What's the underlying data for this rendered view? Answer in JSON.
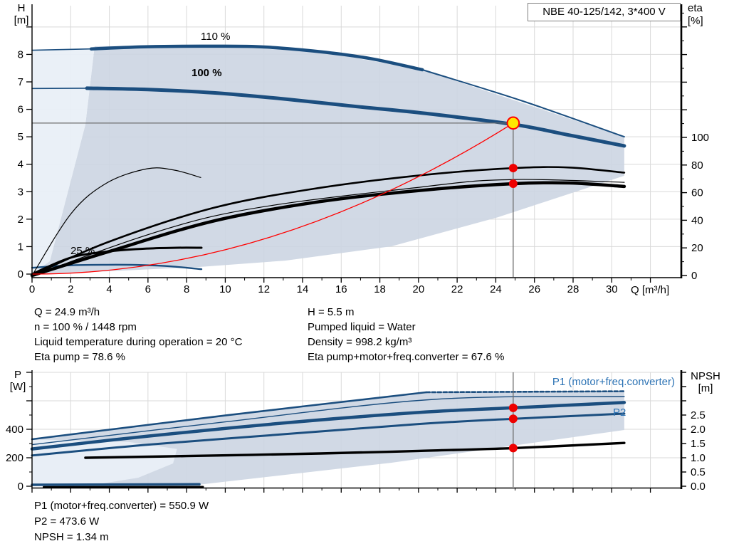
{
  "title_box": {
    "text": "NBE 40-125/142, 3*400 V"
  },
  "colors": {
    "curve_blue": "#1b4e7f",
    "fill_dark": "#ccd5e2",
    "fill_light": "#e9eff7",
    "grid": "#d9d9d9",
    "axis": "#000000",
    "red": "#ff0000",
    "dot_red": "#ee0000",
    "marker_yellow": "#ffe600",
    "crosshair": "#6e6e6e",
    "blue_text": "#2e74b5"
  },
  "top_chart": {
    "y_left_label_1": "H",
    "y_left_label_2": "[m]",
    "y_right_label_1": "eta",
    "y_right_label_2": "[%]",
    "x_axis_label": "Q [m³/h]",
    "label_110": "110 %",
    "label_100": "100 %",
    "label_25": "25 %"
  },
  "bottom_chart": {
    "y_left_label_1": "P",
    "y_left_label_2": "[W]",
    "y_right_label_1": "NPSH",
    "y_right_label_2": "[m]",
    "label_p1": "P1 (motor+freq.converter)",
    "label_p2": "P2"
  },
  "info_top": {
    "left": [
      "Q = 24.9 m³/h",
      "n = 100 % / 1448 rpm",
      "Liquid temperature during operation = 20 °C",
      "Eta pump = 78.6 %"
    ],
    "right": [
      "H = 5.5 m",
      "Pumped liquid = Water",
      "Density = 998.2 kg/m³",
      "Eta pump+motor+freq.converter = 67.6 %"
    ]
  },
  "info_bottom": [
    "P1 (motor+freq.converter) = 550.9 W",
    "P2 = 473.6 W",
    "NPSH = 1.34 m"
  ],
  "operating_point": {
    "Q_m3h": 24.9,
    "H_m": 5.5,
    "n_percent": 100,
    "rpm": 1448,
    "eta_pump_percent": 78.6,
    "eta_total_percent": 67.6,
    "P1_W": 550.9,
    "P2_W": 473.6,
    "NPSH_m": 1.34,
    "liquid": "Water",
    "temperature_C": 20,
    "density_kg_m3": 998.2
  },
  "chart_data": [
    {
      "id": "head-chart",
      "type": "line",
      "title": "NBE 40-125/142, 3*400 V",
      "xlabel": "Q [m³/h]",
      "x_range": [
        0,
        33.6
      ],
      "y_left": {
        "label": "H [m]",
        "range": [
          0,
          9.9
        ]
      },
      "y_right": {
        "label": "eta [%]",
        "range": [
          0,
          196
        ]
      },
      "x_tick_labels": [
        0,
        2,
        4,
        6,
        8,
        10,
        12,
        14,
        16,
        18,
        20,
        22,
        24,
        26,
        28,
        30
      ],
      "h_tick_labels": [
        0,
        1,
        2,
        3,
        4,
        5,
        6,
        7,
        8
      ],
      "eta_tick_labels": [
        0,
        20,
        40,
        60,
        80,
        100
      ],
      "envelope_dark": [
        [
          3.24,
          8.3
        ],
        [
          9.4,
          8.3
        ],
        [
          14.9,
          8.1
        ],
        [
          20.2,
          7.44
        ],
        [
          30.65,
          5.0
        ],
        [
          30.65,
          3.58
        ],
        [
          24.1,
          2.07
        ],
        [
          18.6,
          1.01
        ],
        [
          13.1,
          0.49
        ],
        [
          8.66,
          0.26
        ],
        [
          3.87,
          0.1
        ],
        [
          0,
          0
        ],
        [
          0.92,
          0.47
        ],
        [
          2.76,
          5.44
        ]
      ],
      "envelope_light": [
        [
          0,
          8.15
        ],
        [
          3.06,
          8.22
        ],
        [
          3.24,
          8.3
        ],
        [
          2.76,
          5.44
        ],
        [
          0.92,
          0.47
        ],
        [
          0,
          0
        ]
      ],
      "series": [
        {
          "name": "speed-110-stub",
          "axis": "H",
          "color": "#1b4e7f",
          "width": 1.6,
          "points": [
            [
              0,
              8.15
            ],
            [
              3.06,
              8.2
            ]
          ]
        },
        {
          "name": "speed-110-curve",
          "axis": "H",
          "color": "#1b4e7f",
          "width": 4.5,
          "points": [
            [
              3.06,
              8.2
            ],
            [
              6,
              8.28
            ],
            [
              9.4,
              8.3
            ],
            [
              12,
              8.27
            ],
            [
              14.9,
              8.1
            ],
            [
              17.5,
              7.85
            ],
            [
              20.2,
              7.44
            ]
          ]
        },
        {
          "name": "envelope-top-edge",
          "axis": "H",
          "color": "#1b4e7f",
          "width": 2,
          "points": [
            [
              20.2,
              7.44
            ],
            [
              25.4,
              6.3
            ],
            [
              30.65,
              5.0
            ]
          ]
        },
        {
          "name": "speed-100-stub",
          "axis": "H",
          "color": "#1b4e7f",
          "width": 1.6,
          "points": [
            [
              0,
              6.76
            ],
            [
              2.84,
              6.77
            ]
          ]
        },
        {
          "name": "speed-100-curve",
          "axis": "H",
          "color": "#1b4e7f",
          "width": 5,
          "points": [
            [
              2.84,
              6.77
            ],
            [
              6,
              6.72
            ],
            [
              9.4,
              6.6
            ],
            [
              13,
              6.38
            ],
            [
              16.8,
              6.1
            ],
            [
              20.4,
              5.85
            ],
            [
              24.94,
              5.45
            ],
            [
              27.8,
              5.06
            ],
            [
              30.65,
              4.67
            ]
          ]
        },
        {
          "name": "speed-25-curve",
          "axis": "H",
          "color": "#1b4e7f",
          "width": 2.4,
          "points": [
            [
              0,
              0.23
            ],
            [
              2,
              0.32
            ],
            [
              3.9,
              0.34
            ],
            [
              5.7,
              0.33
            ],
            [
              7.2,
              0.28
            ],
            [
              8.77,
              0.18
            ]
          ]
        },
        {
          "name": "eta-pump-curve",
          "axis": "eta",
          "color": "#000000",
          "width": 2.6,
          "points": [
            [
              0,
              0
            ],
            [
              3.9,
              24
            ],
            [
              9.4,
              49
            ],
            [
              14.9,
              63.5
            ],
            [
              20.4,
              73
            ],
            [
              24.94,
              77.8
            ],
            [
              27.8,
              78.2
            ],
            [
              30.65,
              74.5
            ]
          ]
        },
        {
          "name": "eta-total-curve",
          "axis": "eta",
          "color": "#000000",
          "width": 4.5,
          "points": [
            [
              0,
              0
            ],
            [
              3.9,
              17
            ],
            [
              9.4,
              39.5
            ],
            [
              14.9,
              53.5
            ],
            [
              20.4,
              62
            ],
            [
              24.94,
              66.5
            ],
            [
              27.8,
              67
            ],
            [
              30.65,
              64.5
            ]
          ]
        },
        {
          "name": "eta-thin-companion",
          "axis": "eta",
          "color": "#000000",
          "width": 1.2,
          "points": [
            [
              0,
              0
            ],
            [
              9.4,
              43
            ],
            [
              20.4,
              64.5
            ],
            [
              24.94,
              69.5
            ],
            [
              30.65,
              67.5
            ]
          ]
        },
        {
          "name": "eta-small-curve",
          "axis": "eta",
          "color": "#000000",
          "width": 1.2,
          "points": [
            [
              0,
              0
            ],
            [
              2.03,
              45
            ],
            [
              3.87,
              67
            ],
            [
              5.97,
              77.3
            ],
            [
              7.37,
              76.3
            ],
            [
              8.73,
              71
            ]
          ]
        },
        {
          "name": "small-head-curve",
          "axis": "H",
          "color": "#000000",
          "width": 3,
          "points": [
            [
              0,
              0
            ],
            [
              2,
              0.6
            ],
            [
              4,
              0.83
            ],
            [
              6,
              0.93
            ],
            [
              7.5,
              0.96
            ],
            [
              8.77,
              0.96
            ]
          ]
        }
      ],
      "system_curve": {
        "Q": 24.9,
        "H": 5.5
      },
      "marker": {
        "Q": 24.9,
        "H": 5.5
      },
      "dots": [
        {
          "axis": "eta",
          "Q": 24.9,
          "value": 77.8
        },
        {
          "axis": "eta",
          "Q": 24.9,
          "value": 66.5
        }
      ]
    },
    {
      "id": "power-npsh-chart",
      "type": "line",
      "xlabel": "Q [m³/h]",
      "x_range": [
        0,
        33.6
      ],
      "y_left": {
        "label": "P [W]",
        "range": [
          0,
          800
        ]
      },
      "y_right": {
        "label": "NPSH [m]",
        "range": [
          0,
          4
        ]
      },
      "p_tick_labels": [
        0,
        200,
        400
      ],
      "npsh_tick_labels": [
        "0.0",
        "0.5",
        "1.0",
        "1.5",
        "2.0",
        "2.5"
      ],
      "envelope_dark": [
        [
          0,
          330
        ],
        [
          10,
          497
        ],
        [
          20.4,
          660
        ],
        [
          30.65,
          667
        ],
        [
          30.65,
          395
        ],
        [
          18.6,
          165
        ],
        [
          8.66,
          11
        ],
        [
          3.3,
          6
        ],
        [
          0,
          8
        ]
      ],
      "envelope_light": [
        [
          0,
          330
        ],
        [
          5,
          311
        ],
        [
          7.5,
          262
        ],
        [
          7.3,
          160
        ],
        [
          5.5,
          60
        ],
        [
          3,
          5
        ],
        [
          0,
          10
        ]
      ],
      "series": [
        {
          "name": "p1-envelope-top",
          "axis": "P",
          "color": "#1b4e7f",
          "width": 2.6,
          "points": [
            [
              0,
              330
            ],
            [
              10,
              497
            ],
            [
              20.4,
              660
            ]
          ]
        },
        {
          "name": "p1-envelope-max",
          "axis": "P",
          "color": "#1b4e7f",
          "width": 2.6,
          "dash": "5 3",
          "points": [
            [
              20.4,
              660
            ],
            [
              30.65,
              667
            ]
          ]
        },
        {
          "name": "p-envelope-thin",
          "axis": "P",
          "color": "#1b4e7f",
          "width": 1.4,
          "points": [
            [
              0,
              292
            ],
            [
              10,
              452
            ],
            [
              20.8,
              610
            ],
            [
              30.65,
              630
            ]
          ]
        },
        {
          "name": "p1-curve",
          "axis": "P",
          "color": "#1b4e7f",
          "width": 4.5,
          "points": [
            [
              0,
              262
            ],
            [
              6,
              352
            ],
            [
              13.1,
              445
            ],
            [
              20,
              518
            ],
            [
              24.94,
              551
            ],
            [
              30.65,
              588
            ]
          ]
        },
        {
          "name": "p2-curve",
          "axis": "P",
          "color": "#1b4e7f",
          "width": 3,
          "points": [
            [
              0,
              216
            ],
            [
              6,
              292
            ],
            [
              13.1,
              366
            ],
            [
              20,
              437
            ],
            [
              24.94,
              474
            ],
            [
              30.65,
              510
            ]
          ]
        },
        {
          "name": "npsh-curve",
          "axis": "N",
          "color": "#000000",
          "width": 3.4,
          "points": [
            [
              2.76,
              1.0
            ],
            [
              8,
              1.06
            ],
            [
              14.9,
              1.15
            ],
            [
              20,
              1.24
            ],
            [
              24.94,
              1.34
            ],
            [
              30.65,
              1.52
            ]
          ]
        },
        {
          "name": "p-25-curve",
          "axis": "P",
          "color": "#1b4e7f",
          "width": 3.4,
          "points": [
            [
              0,
              10
            ],
            [
              8.66,
              14
            ]
          ]
        },
        {
          "name": "npsh-25-curve",
          "axis": "P",
          "color": "#000000",
          "width": 2.6,
          "points": [
            [
              0.6,
              -5
            ],
            [
              8.85,
              -4
            ]
          ]
        }
      ],
      "dots": [
        {
          "axis": "P",
          "Q": 24.9,
          "value": 550.9
        },
        {
          "axis": "P",
          "Q": 24.9,
          "value": 473.6
        },
        {
          "axis": "N",
          "Q": 24.9,
          "value": 1.34
        }
      ]
    }
  ]
}
